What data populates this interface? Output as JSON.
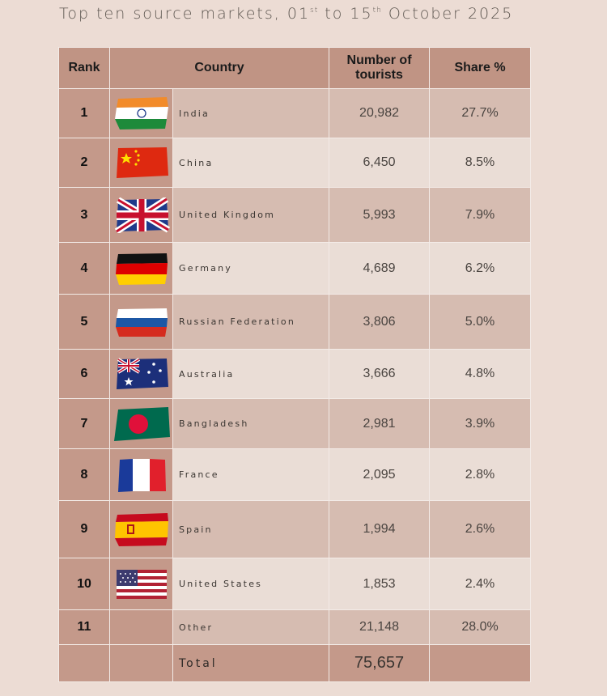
{
  "title": {
    "prefix": "Top ten source markets, 01",
    "sup1": "st",
    "mid": " to 15",
    "sup2": "th",
    "suffix": " October 2025"
  },
  "headers": {
    "rank": "Rank",
    "country": "Country",
    "tourists": "Number of tourists",
    "share": "Share %"
  },
  "rows": [
    {
      "rank": "1",
      "country": "India",
      "tourists": "20,982",
      "share": "27.7%",
      "flag_icon": "india-flag-icon"
    },
    {
      "rank": "2",
      "country": "China",
      "tourists": "6,450",
      "share": "8.5%",
      "flag_icon": "china-flag-icon"
    },
    {
      "rank": "3",
      "country": "United Kingdom",
      "tourists": "5,993",
      "share": "7.9%",
      "flag_icon": "uk-flag-icon"
    },
    {
      "rank": "4",
      "country": "Germany",
      "tourists": "4,689",
      "share": "6.2%",
      "flag_icon": "germany-flag-icon"
    },
    {
      "rank": "5",
      "country": "Russian Federation",
      "tourists": "3,806",
      "share": "5.0%",
      "flag_icon": "russia-flag-icon"
    },
    {
      "rank": "6",
      "country": "Australia",
      "tourists": "3,666",
      "share": "4.8%",
      "flag_icon": "australia-flag-icon"
    },
    {
      "rank": "7",
      "country": "Bangladesh",
      "tourists": "2,981",
      "share": "3.9%",
      "flag_icon": "bangladesh-flag-icon"
    },
    {
      "rank": "8",
      "country": "France",
      "tourists": "2,095",
      "share": "2.8%",
      "flag_icon": "france-flag-icon"
    },
    {
      "rank": "9",
      "country": "Spain",
      "tourists": "1,994",
      "share": "2.6%",
      "flag_icon": "spain-flag-icon"
    },
    {
      "rank": "10",
      "country": "United States",
      "tourists": "1,853",
      "share": "2.4%",
      "flag_icon": "usa-flag-icon"
    },
    {
      "rank": "11",
      "country": "Other",
      "tourists": "21,148",
      "share": "28.0%"
    }
  ],
  "total": {
    "label": "Total",
    "tourists": "75,657"
  },
  "colors": {
    "background": "#ecdcd4",
    "header": "#c09484",
    "row_dark": "#d6bcb1",
    "row_light": "#eaddd6",
    "rank_column": "#c4998a"
  }
}
